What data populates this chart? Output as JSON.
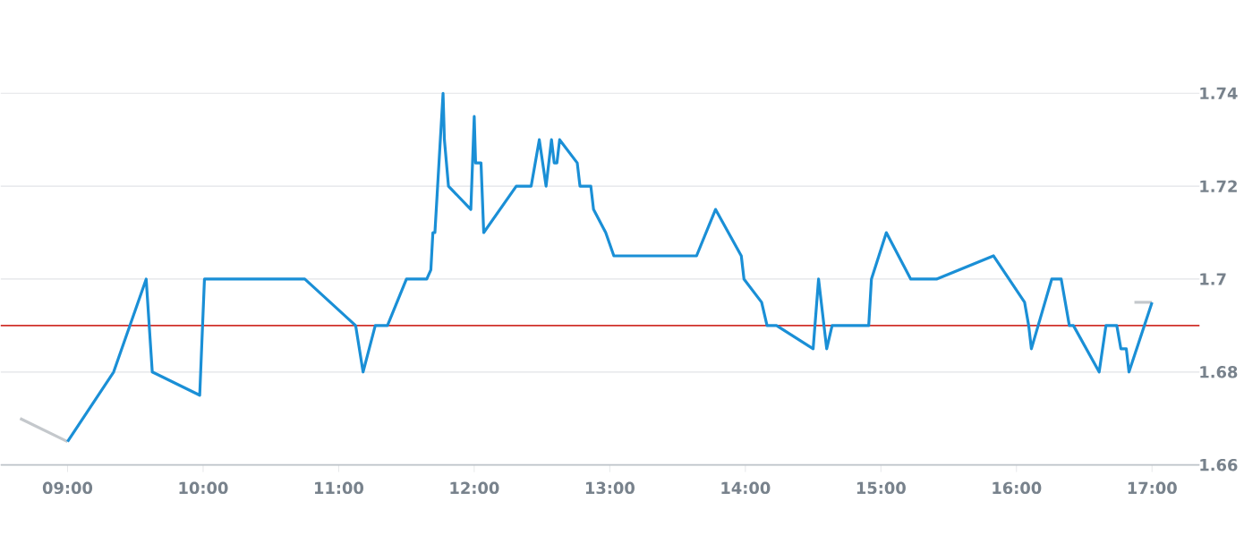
{
  "chart_data": {
    "type": "line",
    "xlim": [
      8.507,
      17.35
    ],
    "ylim": [
      1.66,
      1.74
    ],
    "xticks": [
      {
        "value": 9,
        "label": "09:00"
      },
      {
        "value": 10,
        "label": "10:00"
      },
      {
        "value": 11,
        "label": "11:00"
      },
      {
        "value": 12,
        "label": "12:00"
      },
      {
        "value": 13,
        "label": "13:00"
      },
      {
        "value": 14,
        "label": "14:00"
      },
      {
        "value": 15,
        "label": "15:00"
      },
      {
        "value": 16,
        "label": "16:00"
      },
      {
        "value": 17,
        "label": "17:00"
      }
    ],
    "yticks": [
      1.66,
      1.68,
      {
        "value": 1.7,
        "label": "1.7"
      },
      1.72,
      1.74
    ],
    "grid": "y",
    "ref_lines": [
      {
        "axis": "y",
        "value": 1.69,
        "color": "#d0302a"
      }
    ],
    "series": [
      {
        "color": "#c4c8cc",
        "x": [
          8.65,
          9.0
        ],
        "values": [
          1.67,
          1.665
        ]
      },
      {
        "color": "#c4c8cc",
        "x": [
          16.87,
          17.0
        ],
        "values": [
          1.695,
          1.695
        ]
      },
      {
        "color": "#1a8fd6",
        "x": [
          9.0,
          9.34,
          9.58,
          9.625,
          9.975,
          10.01,
          10.75,
          11.125,
          11.18,
          11.27,
          11.36,
          11.5,
          11.65,
          11.68,
          11.695,
          11.71,
          11.73,
          11.77,
          11.78,
          11.81,
          11.975,
          12.0,
          12.01,
          12.05,
          12.07,
          12.31,
          12.42,
          12.45,
          12.48,
          12.53,
          12.55,
          12.57,
          12.59,
          12.61,
          12.63,
          12.76,
          12.78,
          12.86,
          12.88,
          12.97,
          13.03,
          13.64,
          13.78,
          13.97,
          13.99,
          14.12,
          14.16,
          14.23,
          14.5,
          14.54,
          14.6,
          14.64,
          14.91,
          14.93,
          15.04,
          15.22,
          15.41,
          15.83,
          16.06,
          16.09,
          16.11,
          16.26,
          16.33,
          16.39,
          16.42,
          16.61,
          16.66,
          16.74,
          16.77,
          16.81,
          16.83,
          17.0
        ],
        "values": [
          1.665,
          1.68,
          1.7,
          1.68,
          1.675,
          1.7,
          1.7,
          1.69,
          1.68,
          1.69,
          1.69,
          1.7,
          1.7,
          1.702,
          1.71,
          1.71,
          1.72,
          1.74,
          1.73,
          1.72,
          1.715,
          1.735,
          1.725,
          1.725,
          1.71,
          1.72,
          1.72,
          1.725,
          1.73,
          1.72,
          1.725,
          1.73,
          1.725,
          1.725,
          1.73,
          1.725,
          1.72,
          1.72,
          1.715,
          1.71,
          1.705,
          1.705,
          1.715,
          1.705,
          1.7,
          1.695,
          1.69,
          1.69,
          1.685,
          1.7,
          1.685,
          1.69,
          1.69,
          1.7,
          1.71,
          1.7,
          1.7,
          1.705,
          1.695,
          1.69,
          1.685,
          1.7,
          1.7,
          1.69,
          1.69,
          1.68,
          1.69,
          1.69,
          1.685,
          1.685,
          1.68,
          1.695
        ]
      }
    ]
  }
}
